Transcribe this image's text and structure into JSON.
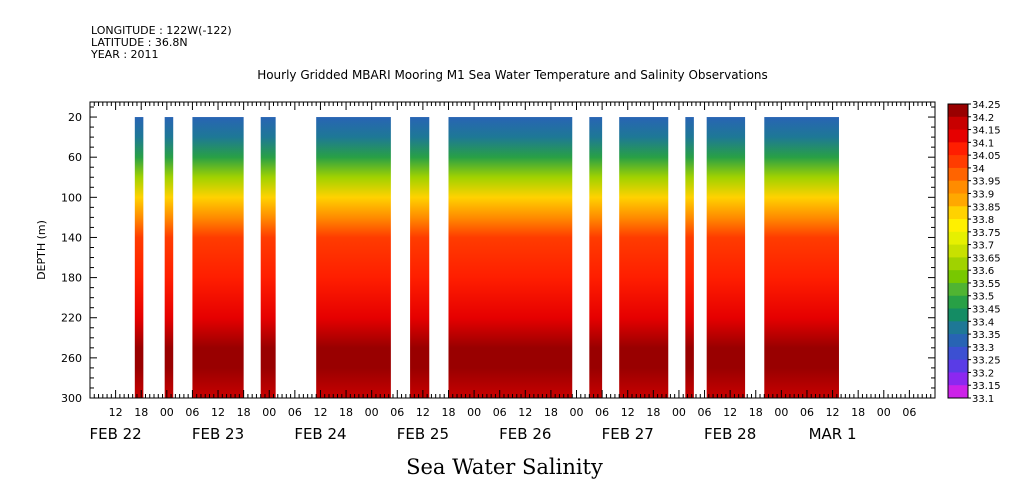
{
  "header": {
    "longitude": "LONGITUDE : 122W(-122)",
    "latitude": "LATITUDE : 36.8N",
    "year": "YEAR : 2011"
  },
  "chart_data": {
    "type": "heatmap",
    "title": "Hourly Gridded MBARI Mooring M1 Sea Water Temperature and Salinity Observations",
    "xlabel": "Sea Water Salinity",
    "ylabel": "DEPTH (m)",
    "xlim_hours": [
      -18,
      180
    ],
    "ylim": [
      300,
      5
    ],
    "y_ticks": [
      20,
      60,
      100,
      140,
      180,
      220,
      260,
      300
    ],
    "x_hour_ticks": [
      {
        "h": -12,
        "label": "12"
      },
      {
        "h": -6,
        "label": "18"
      },
      {
        "h": 0,
        "label": "00"
      },
      {
        "h": 6,
        "label": "06"
      },
      {
        "h": 12,
        "label": "12"
      },
      {
        "h": 18,
        "label": "18"
      },
      {
        "h": 24,
        "label": "00"
      },
      {
        "h": 30,
        "label": "06"
      },
      {
        "h": 36,
        "label": "12"
      },
      {
        "h": 42,
        "label": "18"
      },
      {
        "h": 48,
        "label": "00"
      },
      {
        "h": 54,
        "label": "06"
      },
      {
        "h": 60,
        "label": "12"
      },
      {
        "h": 66,
        "label": "18"
      },
      {
        "h": 72,
        "label": "00"
      },
      {
        "h": 78,
        "label": "06"
      },
      {
        "h": 84,
        "label": "12"
      },
      {
        "h": 90,
        "label": "18"
      },
      {
        "h": 96,
        "label": "00"
      },
      {
        "h": 102,
        "label": "06"
      },
      {
        "h": 108,
        "label": "12"
      },
      {
        "h": 114,
        "label": "18"
      },
      {
        "h": 120,
        "label": "00"
      },
      {
        "h": 126,
        "label": "06"
      },
      {
        "h": 132,
        "label": "12"
      },
      {
        "h": 138,
        "label": "18"
      },
      {
        "h": 144,
        "label": "00"
      },
      {
        "h": 150,
        "label": "06"
      },
      {
        "h": 156,
        "label": "12"
      },
      {
        "h": 162,
        "label": "18"
      },
      {
        "h": 168,
        "label": "00"
      },
      {
        "h": 174,
        "label": "06"
      }
    ],
    "date_labels": [
      {
        "h": -12,
        "label": "FEB 22"
      },
      {
        "h": 12,
        "label": "FEB 23"
      },
      {
        "h": 36,
        "label": "FEB 24"
      },
      {
        "h": 60,
        "label": "FEB 25"
      },
      {
        "h": 84,
        "label": "FEB 26"
      },
      {
        "h": 108,
        "label": "FEB 27"
      },
      {
        "h": 132,
        "label": "FEB 28"
      },
      {
        "h": 156,
        "label": "MAR  1"
      }
    ],
    "hour_origin_note": "",
    "data_segments_hours": [
      [
        -7.5,
        -5.5
      ],
      [
        -0.5,
        1.5
      ],
      [
        6,
        18
      ],
      [
        22,
        25.5
      ],
      [
        35,
        52.5
      ],
      [
        57,
        61.5
      ],
      [
        66,
        95
      ],
      [
        99,
        102
      ],
      [
        106,
        117.5
      ],
      [
        121.5,
        123.5
      ],
      [
        126.5,
        135.5
      ],
      [
        140,
        157.5
      ]
    ],
    "colorbar": {
      "levels": [
        "34.25",
        "34.2",
        "34.15",
        "34.1",
        "34.05",
        "34",
        "33.95",
        "33.9",
        "33.85",
        "33.8",
        "33.75",
        "33.7",
        "33.65",
        "33.6",
        "33.55",
        "33.5",
        "33.45",
        "33.4",
        "33.35",
        "33.3",
        "33.25",
        "33.2",
        "33.15",
        "33.1"
      ],
      "colors": [
        "#990000",
        "#c80000",
        "#e60000",
        "#ff1e00",
        "#ff3c00",
        "#ff6400",
        "#ff8c00",
        "#ffa800",
        "#ffd200",
        "#fff000",
        "#e6f000",
        "#c8e100",
        "#a0d200",
        "#78c800",
        "#50b432",
        "#28a046",
        "#148c64",
        "#1e7896",
        "#2864b4",
        "#3c50d2",
        "#5a3ce6",
        "#8c28f0",
        "#cc22e8"
      ]
    },
    "profile": [
      {
        "depth": 20,
        "salinity": 33.3
      },
      {
        "depth": 40,
        "salinity": 33.35
      },
      {
        "depth": 60,
        "salinity": 33.45
      },
      {
        "depth": 80,
        "salinity": 33.6
      },
      {
        "depth": 100,
        "salinity": 33.8
      },
      {
        "depth": 120,
        "salinity": 33.9
      },
      {
        "depth": 140,
        "salinity": 34.0
      },
      {
        "depth": 180,
        "salinity": 34.05
      },
      {
        "depth": 220,
        "salinity": 34.1
      },
      {
        "depth": 250,
        "salinity": 34.25
      },
      {
        "depth": 270,
        "salinity": 34.2
      },
      {
        "depth": 300,
        "salinity": 34.15
      }
    ]
  }
}
